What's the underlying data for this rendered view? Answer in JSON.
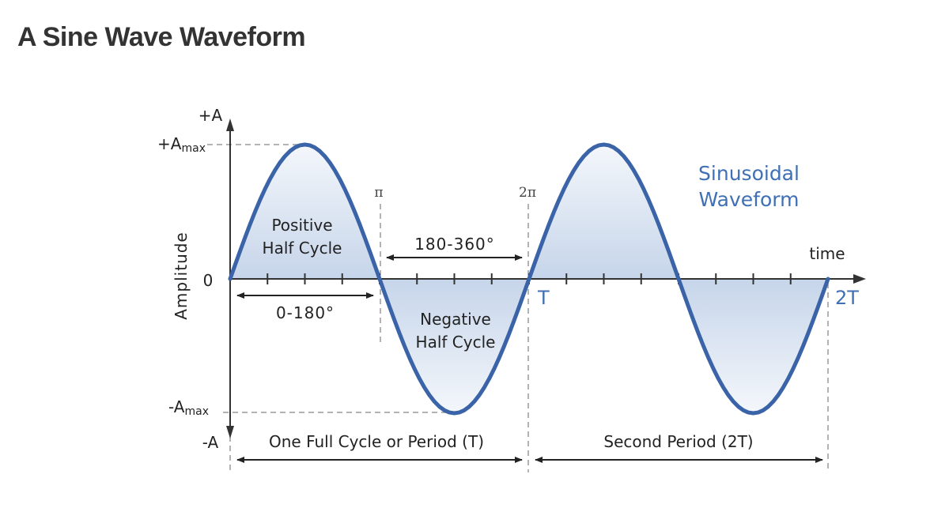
{
  "page": {
    "title": "A Sine Wave Waveform"
  },
  "axes": {
    "y_top": "+A",
    "y_bottom": "-A",
    "amax_pos_base": "+A",
    "amax_pos_sub": "max",
    "amax_neg_base": "-A",
    "amax_neg_sub": "max",
    "zero": "0",
    "y_title": "Amplitude",
    "x_title": "time"
  },
  "markers": {
    "pi": "π",
    "two_pi": "2π",
    "T": "T",
    "two_T": "2T"
  },
  "annotations": {
    "positive_line1": "Positive",
    "positive_line2": "Half Cycle",
    "negative_line1": "Negative",
    "negative_line2": "Half Cycle",
    "range_0_180": "0-180°",
    "range_180_360": "180-360°",
    "period_one": "One Full Cycle or Period (T)",
    "period_two": "Second Period (2T)",
    "wave_line1": "Sinusoidal",
    "wave_line2": "Waveform"
  },
  "colors": {
    "wave": "#3a63a8",
    "fill": "#c9d7ea",
    "axis": "#333333",
    "guide": "#9a9a9a",
    "label_blue": "#3f6fb5"
  }
}
